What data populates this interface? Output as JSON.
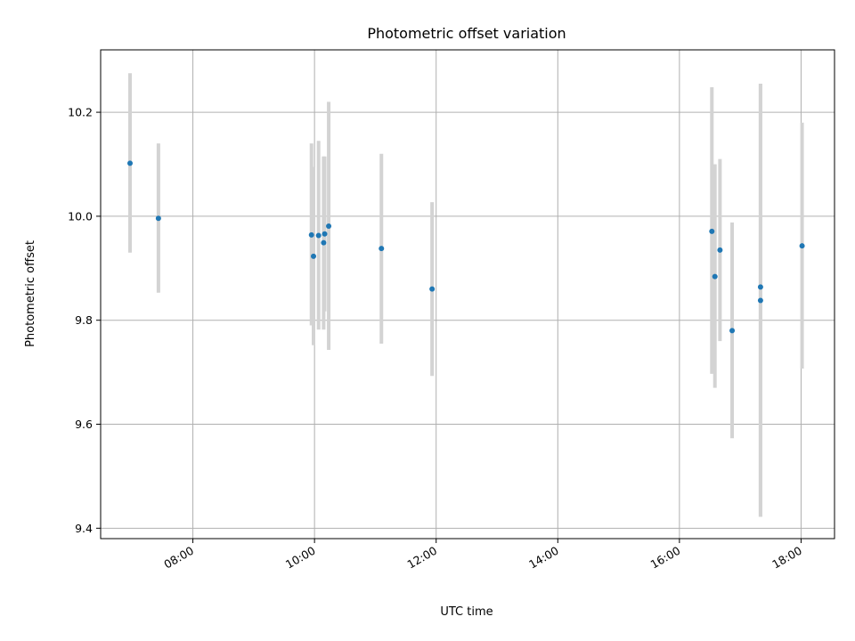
{
  "chart_data": {
    "type": "scatter",
    "title": "Photometric offset variation",
    "xlabel": "UTC time",
    "ylabel": "Photometric offset",
    "xlim": [
      "06:29",
      "18:33"
    ],
    "ylim": [
      9.38,
      10.32
    ],
    "x_ticks": [
      "08:00",
      "10:00",
      "12:00",
      "14:00",
      "16:00",
      "18:00"
    ],
    "y_ticks": [
      "9.4",
      "9.6",
      "9.8",
      "10.0",
      "10.2"
    ],
    "grid": true,
    "marker_color": "#1f77b4",
    "errorbar_color": "#d3d3d3",
    "points": [
      {
        "x": "06:58",
        "y": 10.102,
        "ylow": 9.93,
        "yhigh": 10.275
      },
      {
        "x": "07:26",
        "y": 9.996,
        "ylow": 9.853,
        "yhigh": 10.14
      },
      {
        "x": "09:57",
        "y": 9.964,
        "ylow": 9.79,
        "yhigh": 10.14
      },
      {
        "x": "09:59",
        "y": 9.923,
        "ylow": 9.752,
        "yhigh": 10.095
      },
      {
        "x": "10:04",
        "y": 9.963,
        "ylow": 9.782,
        "yhigh": 10.145
      },
      {
        "x": "10:09",
        "y": 9.949,
        "ylow": 9.782,
        "yhigh": 10.115
      },
      {
        "x": "10:10",
        "y": 9.966,
        "ylow": 9.817,
        "yhigh": 10.115
      },
      {
        "x": "10:14",
        "y": 9.981,
        "ylow": 9.743,
        "yhigh": 10.22
      },
      {
        "x": "11:06",
        "y": 9.938,
        "ylow": 9.755,
        "yhigh": 10.12
      },
      {
        "x": "11:56",
        "y": 9.86,
        "ylow": 9.693,
        "yhigh": 10.027
      },
      {
        "x": "16:32",
        "y": 9.971,
        "ylow": 9.697,
        "yhigh": 10.248
      },
      {
        "x": "16:35",
        "y": 9.884,
        "ylow": 9.67,
        "yhigh": 10.1
      },
      {
        "x": "16:40",
        "y": 9.935,
        "ylow": 9.76,
        "yhigh": 10.11
      },
      {
        "x": "16:52",
        "y": 9.78,
        "ylow": 9.573,
        "yhigh": 9.988
      },
      {
        "x": "17:20",
        "y": 9.864,
        "ylow": 9.422,
        "yhigh": 10.255
      },
      {
        "x": "17:20",
        "y": 9.838,
        "ylow": 9.422,
        "yhigh": 10.255
      },
      {
        "x": "18:01",
        "y": 9.943,
        "ylow": 9.707,
        "yhigh": 10.18
      }
    ]
  }
}
